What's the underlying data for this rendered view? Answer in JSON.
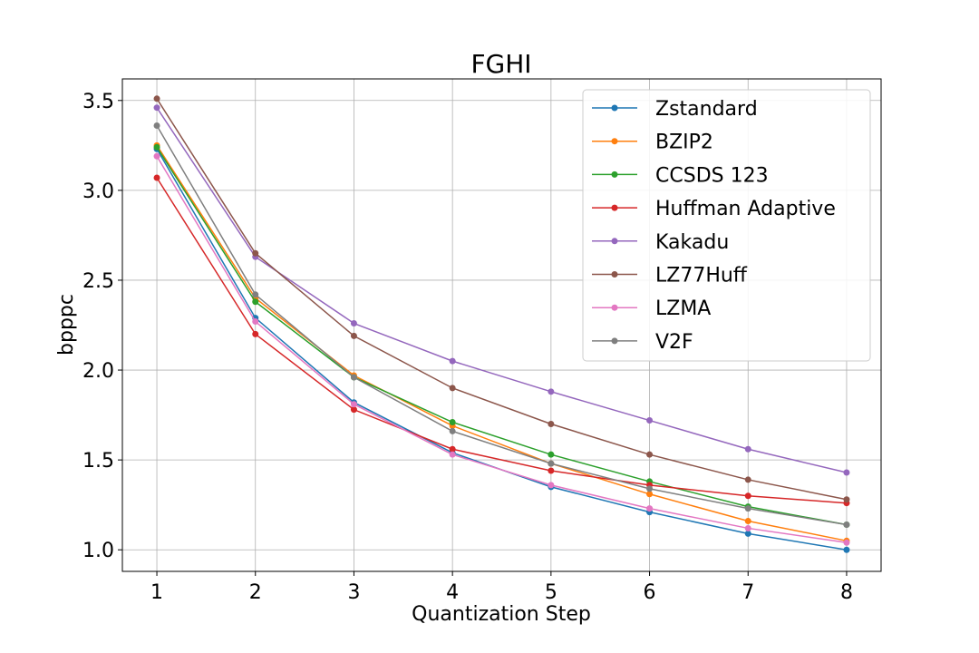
{
  "chart_data": {
    "type": "line",
    "title": "FGHI",
    "xlabel": "Quantization Step",
    "ylabel": "bpppc",
    "x": [
      1,
      2,
      3,
      4,
      5,
      6,
      7,
      8
    ],
    "xticks": [
      "1",
      "2",
      "3",
      "4",
      "5",
      "6",
      "7",
      "8"
    ],
    "yticks": [
      "1.0",
      "1.5",
      "2.0",
      "2.5",
      "3.0",
      "3.5"
    ],
    "ytick_values": [
      1.0,
      1.5,
      2.0,
      2.5,
      3.0,
      3.5
    ],
    "xlim": [
      0.65,
      8.35
    ],
    "ylim": [
      0.88,
      3.62
    ],
    "grid": true,
    "legend_position": "top-right",
    "series": [
      {
        "name": "Zstandard",
        "color": "#1f77b4",
        "values": [
          3.23,
          2.29,
          1.82,
          1.54,
          1.35,
          1.21,
          1.09,
          1.0
        ]
      },
      {
        "name": "BZIP2",
        "color": "#ff7f0e",
        "values": [
          3.25,
          2.4,
          1.97,
          1.69,
          1.48,
          1.31,
          1.16,
          1.05
        ]
      },
      {
        "name": "CCSDS 123",
        "color": "#2ca02c",
        "values": [
          3.24,
          2.38,
          1.96,
          1.71,
          1.53,
          1.38,
          1.24,
          1.14
        ]
      },
      {
        "name": "Huffman Adaptive",
        "color": "#d62728",
        "values": [
          3.07,
          2.2,
          1.78,
          1.56,
          1.44,
          1.36,
          1.3,
          1.26
        ]
      },
      {
        "name": "Kakadu",
        "color": "#9467bd",
        "values": [
          3.46,
          2.63,
          2.26,
          2.05,
          1.88,
          1.72,
          1.56,
          1.43
        ]
      },
      {
        "name": "LZ77Huff",
        "color": "#8c564b",
        "values": [
          3.51,
          2.65,
          2.19,
          1.9,
          1.7,
          1.53,
          1.39,
          1.28
        ]
      },
      {
        "name": "LZMA",
        "color": "#e377c2",
        "values": [
          3.19,
          2.27,
          1.81,
          1.53,
          1.36,
          1.23,
          1.12,
          1.04
        ]
      },
      {
        "name": "V2F",
        "color": "#7f7f7f",
        "values": [
          3.36,
          2.42,
          1.96,
          1.66,
          1.48,
          1.34,
          1.23,
          1.14
        ]
      }
    ]
  }
}
